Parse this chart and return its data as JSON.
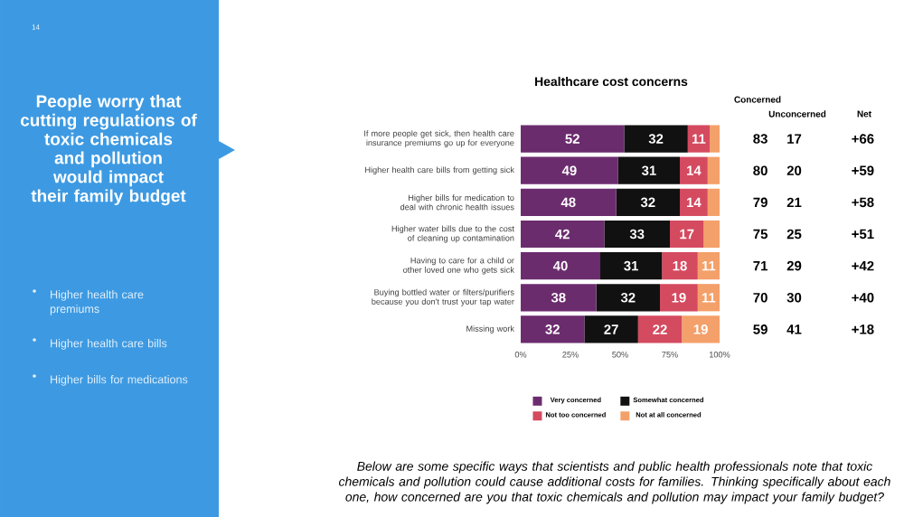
{
  "chart_data": {
    "type": "bar",
    "orientation": "horizontal",
    "stacked": true,
    "title": "Healthcare cost concerns",
    "categories": [
      "If more people get sick, then health care insurance premiums go up for everyone",
      "Higher health care bills from getting sick",
      "Higher bills for medication to deal with chronic health issues",
      "Higher water bills due to the cost of cleaning up contamination",
      "Having to care for a child or other loved one who gets sick",
      "Buying bottled water or filters/purifiers because you don't trust your tap water",
      "Missing work"
    ],
    "series": [
      {
        "name": "Very concerned",
        "color": "#6b2c6e",
        "values": [
          52,
          49,
          48,
          42,
          40,
          38,
          32
        ],
        "value_labels": [
          "52",
          "49",
          "48",
          "42",
          "40",
          "38",
          "32"
        ]
      },
      {
        "name": "Somewhat concerned",
        "color": "#111111",
        "values": [
          32,
          31,
          32,
          33,
          31,
          32,
          27
        ],
        "value_labels": [
          "32",
          "31",
          "32",
          "33",
          "31",
          "32",
          "27"
        ]
      },
      {
        "name": "Not too concerned",
        "color": "#d44a5f",
        "values": [
          11,
          14,
          14,
          17,
          18,
          19,
          22
        ],
        "value_labels": [
          "11",
          "14",
          "14",
          "17",
          "18",
          "19",
          "22"
        ]
      },
      {
        "name": "Not at all concerned",
        "color": "#f4a06a",
        "values": [
          5,
          6,
          6,
          8,
          11,
          11,
          19
        ],
        "value_labels": [
          null,
          null,
          null,
          null,
          "11",
          "11",
          "19"
        ]
      }
    ],
    "xlim": [
      0,
      100
    ],
    "xticks": [
      {
        "value": 0,
        "label": "0%"
      },
      {
        "value": 25,
        "label": "25%"
      },
      {
        "value": 50,
        "label": "50%"
      },
      {
        "value": 75,
        "label": "75%"
      },
      {
        "value": 100,
        "label": "100%"
      }
    ],
    "legend": "bottom",
    "annotations": [
      "14",
      "People worry that cutting regulations of toxic chemicals and pollution would impact their family budget",
      "Higher health care premiums",
      "Higher health care bills",
      "Higher bills for medications",
      "Below are some specific ways that scientists and public health professionals note that toxic chemicals and pollution could cause additional costs for families. Thinking specifically about each one, how concerned are you that toxic chemicals and pollution may impact your family budget?",
      "Concerned",
      "Unconcerned",
      "Net",
      "83",
      "17",
      "+66",
      "80",
      "20",
      "+59",
      "79",
      "21",
      "+58",
      "75",
      "25",
      "+51",
      "71",
      "29",
      "+42",
      "70",
      "30",
      "+40",
      "59",
      "41",
      "+18"
    ]
  }
}
